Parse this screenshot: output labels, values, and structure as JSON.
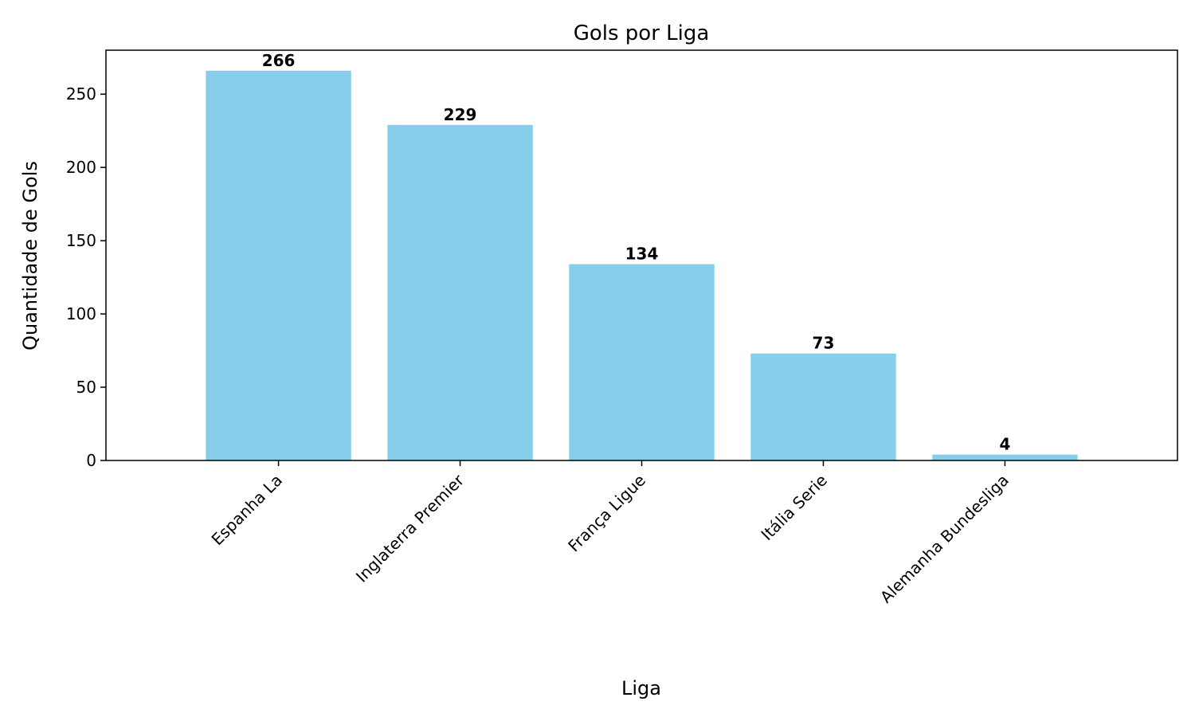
{
  "chart_data": {
    "type": "bar",
    "title": "Gols por Liga",
    "xlabel": "Liga",
    "ylabel": "Quantidade de Gols",
    "categories": [
      "Espanha La",
      "Inglaterra Premier",
      "França Ligue",
      "Itália Serie",
      "Alemanha Bundesliga"
    ],
    "values": [
      266,
      229,
      134,
      73,
      4
    ],
    "ylim": [
      0,
      280
    ],
    "yticks": [
      0,
      50,
      100,
      150,
      200,
      250
    ],
    "bar_color": "#87CEEB",
    "grid": false,
    "legend": false
  }
}
